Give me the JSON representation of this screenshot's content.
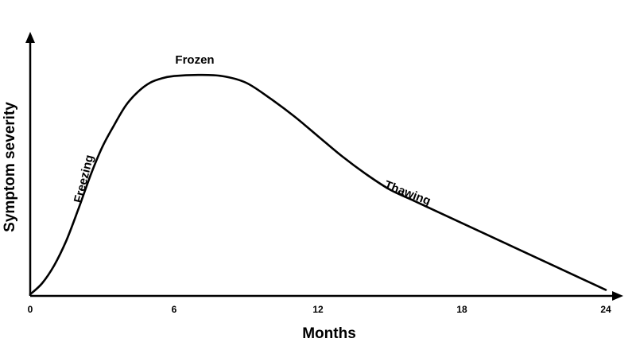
{
  "chart_data": {
    "type": "line",
    "title": "",
    "xlabel": "Months",
    "ylabel": "Symptom severity",
    "xlim": [
      0,
      24
    ],
    "ylim": [
      0,
      1
    ],
    "xticks": [
      "0",
      "6",
      "12",
      "18",
      "24"
    ],
    "yticks": [],
    "grid": false,
    "legend": "none",
    "series": [
      {
        "color": "#000000",
        "x": [
          0,
          0.5,
          1,
          1.5,
          2,
          2.5,
          3,
          3.5,
          4,
          4.5,
          5,
          5.5,
          6,
          7,
          8,
          9,
          10,
          11,
          12,
          13,
          14,
          15,
          16,
          17,
          18,
          19,
          20,
          21,
          22,
          23,
          24
        ],
        "y": [
          0.0,
          0.05,
          0.13,
          0.24,
          0.38,
          0.53,
          0.66,
          0.76,
          0.85,
          0.91,
          0.95,
          0.97,
          0.98,
          0.985,
          0.98,
          0.95,
          0.88,
          0.8,
          0.71,
          0.62,
          0.54,
          0.47,
          0.42,
          0.37,
          0.32,
          0.27,
          0.22,
          0.17,
          0.12,
          0.07,
          0.02
        ]
      }
    ],
    "annotations": [
      {
        "text": "Freezing",
        "x": 2.3,
        "y": 0.55
      },
      {
        "text": "Frozen",
        "x": 6,
        "y": 1.05
      },
      {
        "text": "Thawing",
        "x": 16.5,
        "y": 0.5
      }
    ]
  }
}
